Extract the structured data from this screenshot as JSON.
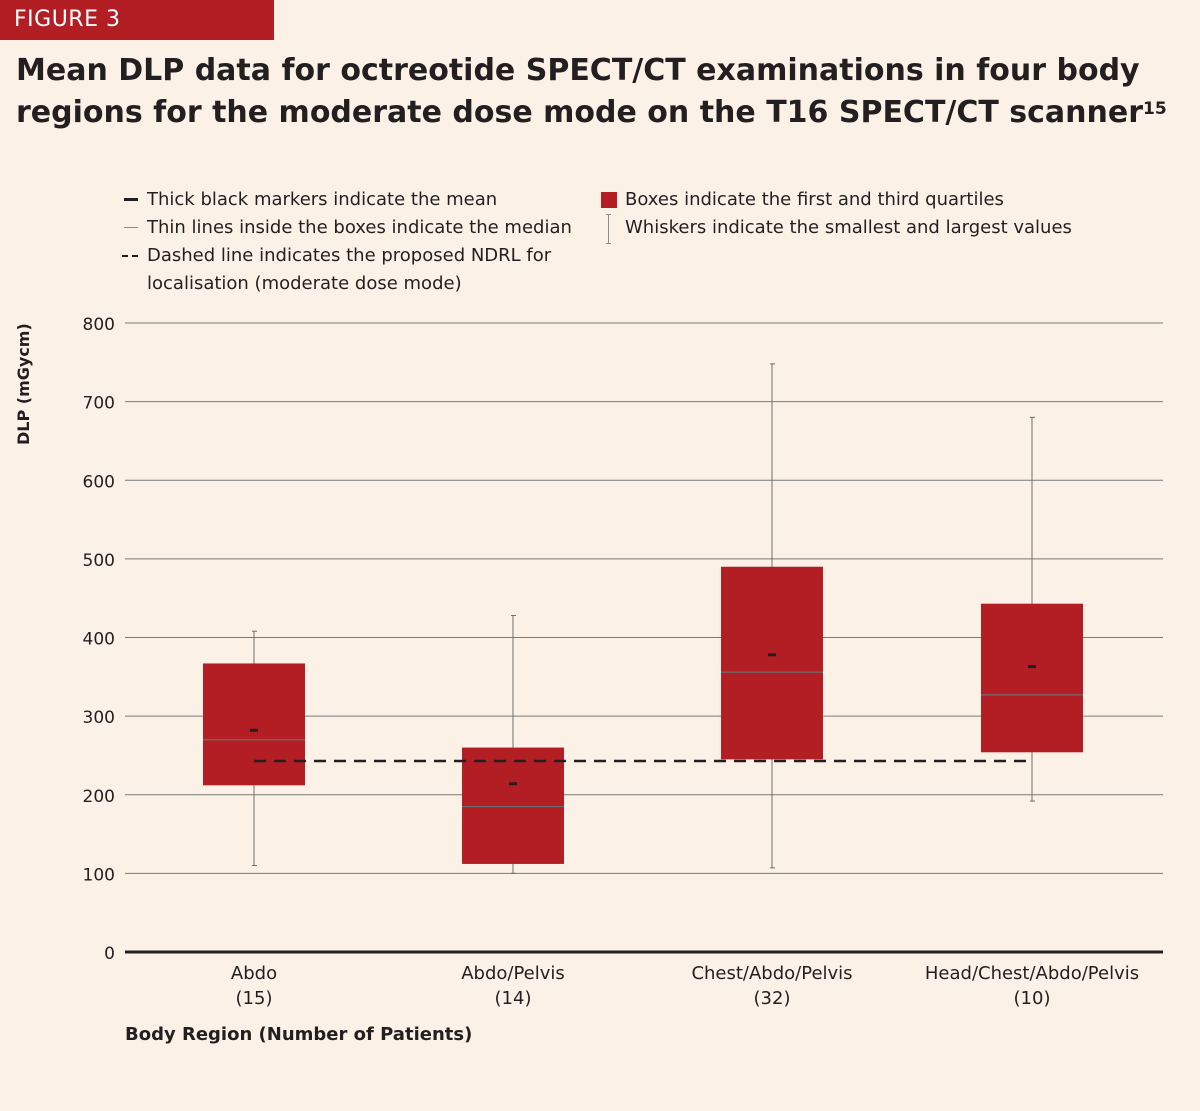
{
  "figure_label": "FIGURE 3",
  "legend": {
    "mean": "Thick black markers indicate the mean",
    "median": "Thin lines inside the boxes indicate the median",
    "ndrl_line1": "Dashed line indicates the proposed NDRL for",
    "ndrl_line2": "localisation (moderate dose mode)",
    "boxes": "Boxes indicate the first and third quartiles",
    "whiskers": "Whiskers indicate the smallest and largest values"
  },
  "colors": {
    "background": "#fbf1e6",
    "accent": "#b21e23",
    "grid": "#7a7a7a",
    "text": "#231f20"
  },
  "chart_data": {
    "type": "box",
    "title": "Mean DLP data for octreotide SPECT/CT examinations in four body regions for the moderate dose mode on the T16 SPECT/CT scanner",
    "title_superscript": "15",
    "ylabel": "DLP (mGycm)",
    "xlabel": "Body Region (Number of Patients)",
    "ylim": [
      0,
      800
    ],
    "yticks": [
      0,
      100,
      200,
      300,
      400,
      500,
      600,
      700,
      800
    ],
    "grid": true,
    "ndrl": 243,
    "categories": [
      {
        "name": "Abdo",
        "n": "(15)",
        "min": 110,
        "q1": 212,
        "median": 270,
        "mean": 282,
        "q3": 367,
        "max": 408
      },
      {
        "name": "Abdo/Pelvis",
        "n": "(14)",
        "min": 100,
        "q1": 112,
        "median": 185,
        "mean": 214,
        "q3": 260,
        "max": 428
      },
      {
        "name": "Chest/Abdo/Pelvis",
        "n": "(32)",
        "min": 107,
        "q1": 245,
        "median": 356,
        "mean": 378,
        "q3": 490,
        "max": 748
      },
      {
        "name": "Head/Chest/Abdo/Pelvis",
        "n": "(10)",
        "min": 192,
        "q1": 254,
        "median": 327,
        "mean": 363,
        "q3": 443,
        "max": 680
      }
    ]
  }
}
